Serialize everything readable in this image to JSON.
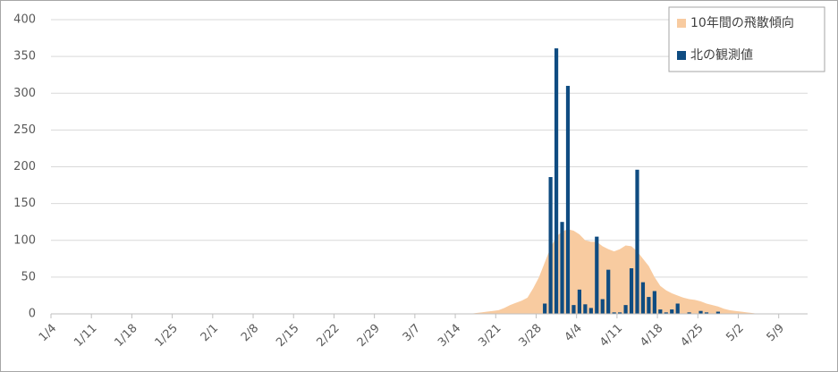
{
  "chart_data": {
    "type": "bar-area",
    "categories": [
      "1/4",
      null,
      null,
      null,
      null,
      null,
      null,
      "1/11",
      null,
      null,
      null,
      null,
      null,
      null,
      "1/18",
      null,
      null,
      null,
      null,
      null,
      null,
      "1/25",
      null,
      null,
      null,
      null,
      null,
      null,
      "2/1",
      null,
      null,
      null,
      null,
      null,
      null,
      "2/8",
      null,
      null,
      null,
      null,
      null,
      null,
      "2/15",
      null,
      null,
      null,
      null,
      null,
      null,
      "2/22",
      null,
      null,
      null,
      null,
      null,
      null,
      "2/29",
      null,
      null,
      null,
      null,
      null,
      null,
      "3/7",
      null,
      null,
      null,
      null,
      null,
      null,
      "3/14",
      null,
      null,
      null,
      null,
      null,
      null,
      "3/21",
      null,
      null,
      null,
      null,
      null,
      null,
      "3/28",
      null,
      null,
      null,
      null,
      null,
      null,
      "4/4",
      null,
      null,
      null,
      null,
      null,
      null,
      "4/11",
      null,
      null,
      null,
      null,
      null,
      null,
      "4/18",
      null,
      null,
      null,
      null,
      null,
      null,
      "4/25",
      null,
      null,
      null,
      null,
      null,
      null,
      "5/2",
      null,
      null,
      null,
      null,
      null,
      null,
      "5/9",
      null,
      null,
      null,
      null
    ],
    "series": [
      {
        "name": "10年間の飛散傾向",
        "kind": "area",
        "color": "#f8cba0",
        "values": [
          0,
          0,
          0,
          0,
          0,
          0,
          0,
          0,
          0,
          0,
          0,
          0,
          0,
          0,
          0,
          0,
          0,
          0,
          0,
          0,
          0,
          0,
          0,
          0,
          0,
          0,
          0,
          0,
          0,
          0,
          0,
          0,
          0,
          0,
          0,
          0,
          0,
          0,
          0,
          0,
          0,
          0,
          0,
          0,
          0,
          0,
          0,
          0,
          0,
          0,
          0,
          0,
          0,
          0,
          0,
          0,
          0,
          0,
          0,
          0,
          0,
          0,
          0,
          0,
          0,
          0,
          0,
          0,
          0,
          0,
          0,
          0,
          0,
          1,
          2,
          3,
          4,
          5,
          8,
          12,
          15,
          18,
          22,
          35,
          50,
          70,
          90,
          105,
          112,
          115,
          113,
          108,
          100,
          98,
          98,
          92,
          88,
          85,
          88,
          93,
          92,
          85,
          75,
          65,
          50,
          38,
          32,
          28,
          25,
          22,
          20,
          19,
          17,
          14,
          12,
          10,
          7,
          5,
          4,
          3,
          2,
          1,
          0,
          0,
          0,
          0,
          0,
          0,
          0,
          0,
          0
        ]
      },
      {
        "name": "北の観測値",
        "kind": "bar",
        "color": "#0f4c81",
        "values": [
          0,
          0,
          0,
          0,
          0,
          0,
          0,
          0,
          0,
          0,
          0,
          0,
          0,
          0,
          0,
          0,
          0,
          0,
          0,
          0,
          0,
          0,
          0,
          0,
          0,
          0,
          0,
          0,
          0,
          0,
          0,
          0,
          0,
          0,
          0,
          0,
          0,
          0,
          0,
          0,
          0,
          0,
          0,
          0,
          0,
          0,
          0,
          0,
          0,
          0,
          0,
          0,
          0,
          0,
          0,
          0,
          0,
          0,
          0,
          0,
          0,
          0,
          0,
          0,
          0,
          0,
          0,
          0,
          0,
          0,
          0,
          0,
          0,
          0,
          0,
          0,
          0,
          0,
          0,
          0,
          0,
          0,
          0,
          0,
          0,
          14,
          186,
          361,
          125,
          310,
          12,
          33,
          13,
          8,
          105,
          20,
          60,
          2,
          2,
          12,
          62,
          196,
          43,
          23,
          31,
          6,
          2,
          6,
          14,
          0,
          2,
          0,
          4,
          2,
          0,
          3,
          0,
          0,
          0,
          0,
          0,
          0,
          0,
          0,
          0,
          0,
          0,
          0,
          0,
          0,
          0
        ]
      }
    ],
    "ylim": [
      0,
      400
    ],
    "yticks": [
      0,
      50,
      100,
      150,
      200,
      250,
      300,
      350,
      400
    ],
    "grid": true,
    "legend": "upper right"
  }
}
